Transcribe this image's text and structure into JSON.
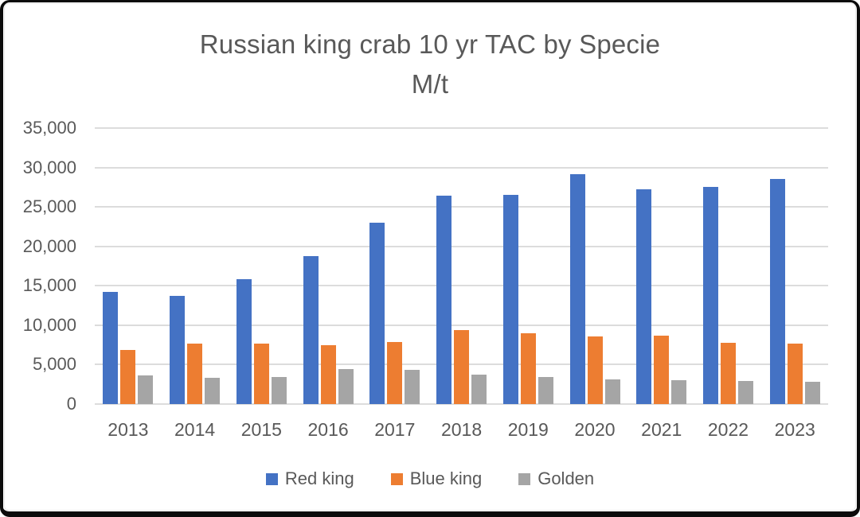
{
  "colors": {
    "background": "#FFFFFF",
    "frame": "#0B0B0B",
    "text": "#595959",
    "gridline": "#DCDCDC"
  },
  "chart_data": {
    "type": "bar",
    "title": "Russian king crab 10 yr TAC by Specie",
    "subtitle": "M/t",
    "xlabel": "",
    "ylabel": "",
    "categories": [
      "2013",
      "2014",
      "2015",
      "2016",
      "2017",
      "2018",
      "2019",
      "2020",
      "2021",
      "2022",
      "2023"
    ],
    "series": [
      {
        "name": "Red king",
        "color": "#4472C4",
        "values": [
          14200,
          13700,
          15800,
          18800,
          23000,
          26450,
          26500,
          29200,
          27250,
          27550,
          28500
        ]
      },
      {
        "name": "Blue king",
        "color": "#ED7D31",
        "values": [
          6900,
          7650,
          7650,
          7500,
          7900,
          9350,
          8950,
          8550,
          8700,
          7800,
          7650
        ]
      },
      {
        "name": "Golden",
        "color": "#A5A5A5",
        "values": [
          3600,
          3300,
          3400,
          4400,
          4350,
          3700,
          3450,
          3150,
          3000,
          2900,
          2800
        ]
      }
    ],
    "ylim": [
      0,
      35000
    ],
    "y_ticks": [
      0,
      5000,
      10000,
      15000,
      20000,
      25000,
      30000,
      35000
    ],
    "y_tick_labels": [
      "0",
      "5,000",
      "10,000",
      "15,000",
      "20,000",
      "25,000",
      "30,000",
      "35,000"
    ],
    "grid": true,
    "legend_position": "bottom"
  }
}
